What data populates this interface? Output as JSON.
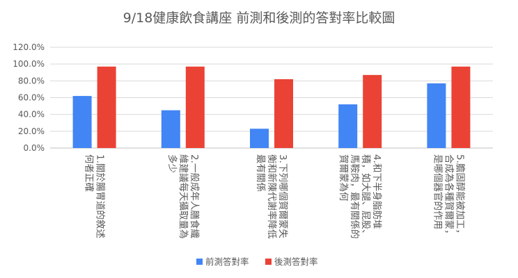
{
  "chart_data": {
    "type": "bar",
    "title": "9/18健康飲食講座 前測和後測的答對率比較圖",
    "categories": [
      [
        "1.關於腸胃道的敘述",
        "何者正確"
      ],
      [
        "2.一般成年人膳食纖",
        "維建議每天攝取量為",
        "多少"
      ],
      [
        "3.下列哪個賀爾蒙失",
        "衡和新陳代謝率降低",
        "最有關係"
      ],
      [
        "4.和下半身脂肪堆",
        "積，如大腿、屁股、",
        "馬鞍肉，最有關係的",
        "賀爾蒙為何"
      ],
      [
        "5.膽固醇能被加工，",
        "合成為各種賀爾蒙，",
        "是哪個器官的作用"
      ]
    ],
    "series": [
      {
        "name": "前測答對率",
        "color": "#4285f4",
        "values": [
          62,
          45,
          23,
          52,
          77
        ]
      },
      {
        "name": "後測答對率",
        "color": "#ea4335",
        "values": [
          97,
          97,
          82,
          87,
          97
        ]
      }
    ],
    "y_ticks": [
      "0.0%",
      "20.0%",
      "40.0%",
      "60.0%",
      "80.0%",
      "100.0%",
      "120.0%"
    ],
    "ylim": [
      0,
      120
    ],
    "y_unit": "%",
    "grid": true,
    "legend_position": "bottom"
  }
}
